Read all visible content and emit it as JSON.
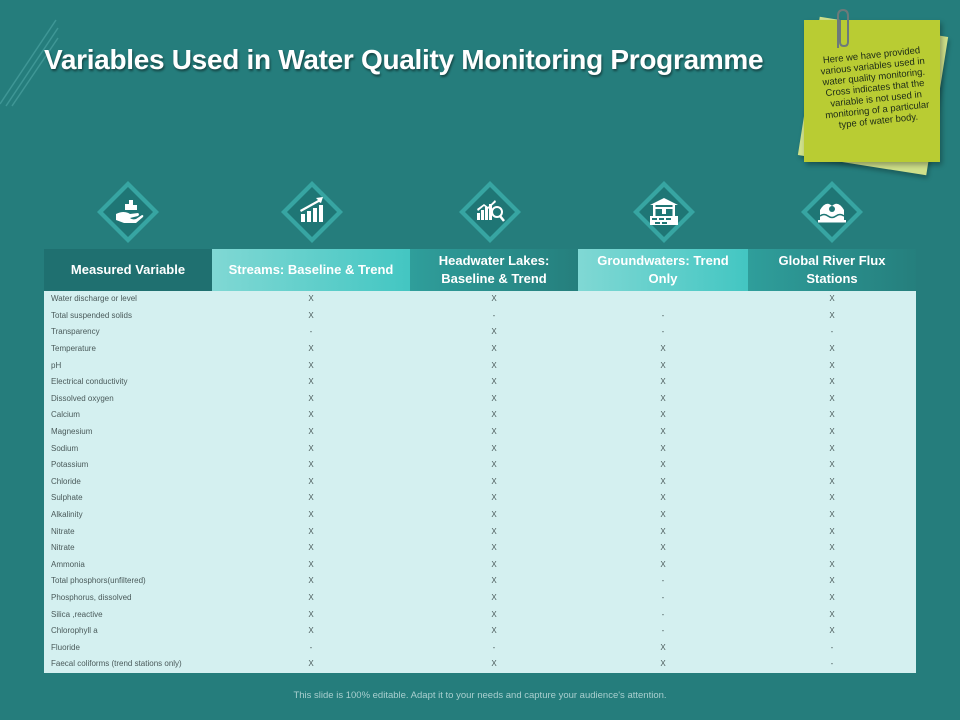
{
  "title": "Variables Used in Water Quality Monitoring Programme",
  "note": {
    "text": "Here we have provided various variables used in water quality monitoring. Cross indicates that the variable is not used in monitoring of a particular type of water body."
  },
  "icons": [
    "hand-coins-icon",
    "growth-chart-icon",
    "chart-magnifier-icon",
    "water-well-icon",
    "water-globe-icon"
  ],
  "colors": {
    "background": "#257d7c",
    "accent_light": "#43c6c2",
    "table_body": "#d4f0f0",
    "note": "#b9cc33"
  },
  "table": {
    "headers": [
      "Measured Variable",
      "Streams: Baseline & Trend",
      "Headwater Lakes: Baseline & Trend",
      "Groundwaters: Trend Only",
      "Global River Flux Stations"
    ],
    "rows": [
      [
        "Water discharge or level",
        "X",
        "X",
        "",
        "X"
      ],
      [
        "Total suspended solids",
        "X",
        "-",
        "-",
        "X"
      ],
      [
        "Transparency",
        "-",
        "X",
        "-",
        "-"
      ],
      [
        "Temperature",
        "X",
        "X",
        "X",
        "X"
      ],
      [
        "pH",
        "X",
        "X",
        "X",
        "X"
      ],
      [
        "Electrical conductivity",
        "X",
        "X",
        "X",
        "X"
      ],
      [
        "Dissolved oxygen",
        "X",
        "X",
        "X",
        "X"
      ],
      [
        "Calcium",
        "X",
        "X",
        "X",
        "X"
      ],
      [
        "Magnesium",
        "X",
        "X",
        "X",
        "X"
      ],
      [
        "Sodium",
        "X",
        "X",
        "X",
        "X"
      ],
      [
        "Potassium",
        "X",
        "X",
        "X",
        "X"
      ],
      [
        "Chloride",
        "X",
        "X",
        "X",
        "X"
      ],
      [
        "Sulphate",
        "X",
        "X",
        "X",
        "X"
      ],
      [
        "Alkalinity",
        "X",
        "X",
        "X",
        "X"
      ],
      [
        "Nitrate",
        "X",
        "X",
        "X",
        "X"
      ],
      [
        "Nitrate",
        "X",
        "X",
        "X",
        "X"
      ],
      [
        "Ammonia",
        "X",
        "X",
        "X",
        "X"
      ],
      [
        "Total phosphors(unfiltered)",
        "X",
        "X",
        "-",
        "X"
      ],
      [
        "Phosphorus, dissolved",
        "X",
        "X",
        "-",
        "X"
      ],
      [
        "Silica ,reactive",
        "X",
        "X",
        "-",
        "X"
      ],
      [
        "Chlorophyll a",
        "X",
        "X",
        "-",
        "X"
      ],
      [
        "Fluoride",
        "-",
        "-",
        "X",
        "-"
      ],
      [
        "Faecal coliforms (trend stations only)",
        "X",
        "X",
        "X",
        "-"
      ]
    ]
  },
  "footer": "This slide is 100% editable. Adapt it to your needs and capture your audience's attention."
}
